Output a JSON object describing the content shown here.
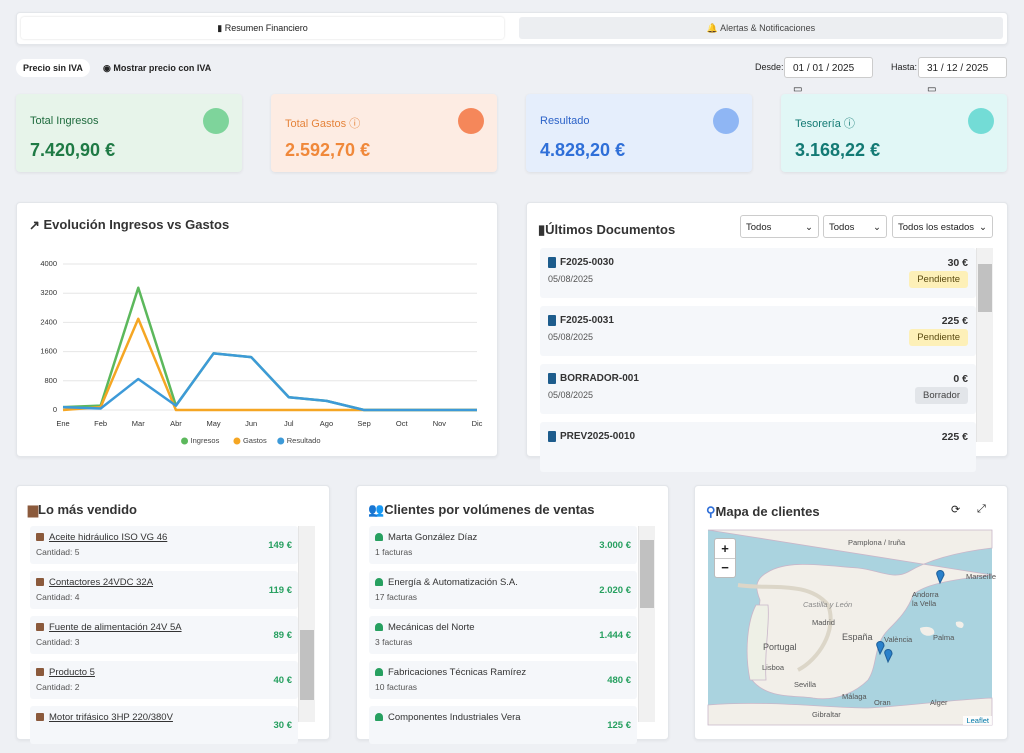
{
  "tabs": [
    "Resumen Financiero",
    "Alertas & Notificaciones"
  ],
  "price_toggle": {
    "without_vat": "Precio sin IVA",
    "with_vat": "Mostrar precio con IVA"
  },
  "date_range": {
    "from_label": "Desde:",
    "from": "01 / 01 / 2025",
    "to_label": "Hasta:",
    "to": "31 / 12 / 2025"
  },
  "kpis": [
    {
      "label": "Total Ingresos",
      "value": "7.420,90 €"
    },
    {
      "label": "Total Gastos",
      "value": "2.592,70 €"
    },
    {
      "label": "Resultado",
      "value": "4.828,20 €"
    },
    {
      "label": "Tesorería",
      "value": "3.168,22 €"
    }
  ],
  "chart_data": {
    "type": "line",
    "title": "Evolución Ingresos vs Gastos",
    "categories": [
      "Ene",
      "Feb",
      "Mar",
      "Abr",
      "May",
      "Jun",
      "Jul",
      "Ago",
      "Sep",
      "Oct",
      "Nov",
      "Dic"
    ],
    "series": [
      {
        "name": "Ingresos",
        "color": "#5cb85c",
        "values": [
          80,
          120,
          3350,
          120,
          1550,
          1450,
          350,
          250,
          0,
          0,
          0,
          0
        ]
      },
      {
        "name": "Gastos",
        "color": "#f5a623",
        "values": [
          0,
          80,
          2500,
          0,
          0,
          0,
          0,
          0,
          0,
          0,
          0,
          0
        ]
      },
      {
        "name": "Resultado",
        "color": "#3d9ad8",
        "values": [
          80,
          40,
          850,
          120,
          1550,
          1450,
          350,
          250,
          0,
          0,
          0,
          0
        ]
      }
    ],
    "ylim": [
      0,
      4000
    ],
    "yticks": [
      0,
      800,
      1600,
      2400,
      3200,
      4000
    ],
    "grid": true,
    "legend": "bottom"
  },
  "documents": {
    "title": "Últimos Documentos",
    "filters": [
      "Todos",
      "Todos",
      "Todos los estados"
    ],
    "items": [
      {
        "number": "F2025-0030",
        "date": "05/08/2025",
        "amount": "30 €",
        "status": "Pendiente"
      },
      {
        "number": "F2025-0031",
        "date": "05/08/2025",
        "amount": "225 €",
        "status": "Pendiente"
      },
      {
        "number": "BORRADOR-001",
        "date": "05/08/2025",
        "amount": "0 €",
        "status": "Borrador"
      },
      {
        "number": "PREV2025-0010",
        "amount": "225 €"
      }
    ]
  },
  "top_products": {
    "title": "Lo más vendido",
    "items": [
      {
        "name": "Aceite hidráulico ISO VG 46",
        "quantity": "Cantidad: 5",
        "amount": "149 €"
      },
      {
        "name": "Contactores 24VDC 32A",
        "quantity": "Cantidad: 4",
        "amount": "119 €"
      },
      {
        "name": "Fuente de alimentación 24V 5A",
        "quantity": "Cantidad: 3",
        "amount": "89 €"
      },
      {
        "name": "Producto 5",
        "quantity": "Cantidad: 2",
        "amount": "40 €"
      },
      {
        "name": "Motor trifásico 3HP 220/380V",
        "amount": "30 €"
      }
    ]
  },
  "top_clients": {
    "title": "Clientes por volúmenes de ventas",
    "items": [
      {
        "name": "Marta González Díaz",
        "invoices": "1 facturas",
        "amount": "3.000 €"
      },
      {
        "name": "Energía & Automatización S.A.",
        "invoices": "17 facturas",
        "amount": "2.020 €"
      },
      {
        "name": "Mecánicas del Norte",
        "invoices": "3 facturas",
        "amount": "1.444 €"
      },
      {
        "name": "Fabricaciones Técnicas Ramírez",
        "invoices": "10 facturas",
        "amount": "480 €"
      },
      {
        "name": "Componentes Industriales Vera",
        "amount": "125 €"
      }
    ]
  },
  "client_map": {
    "title": "Mapa de clientes",
    "zoom_in": "+",
    "zoom_out": "−",
    "labels": [
      "Pamplona / Iruña",
      "Castilla y León",
      "Madrid",
      "España",
      "Portugal",
      "Lisboa",
      "València",
      "Palma",
      "Sevilla",
      "Málaga",
      "Gibraltar",
      "Andorra la Vella",
      "Marseille",
      "Oran",
      "Alger"
    ],
    "attribution": "Leaflet"
  }
}
